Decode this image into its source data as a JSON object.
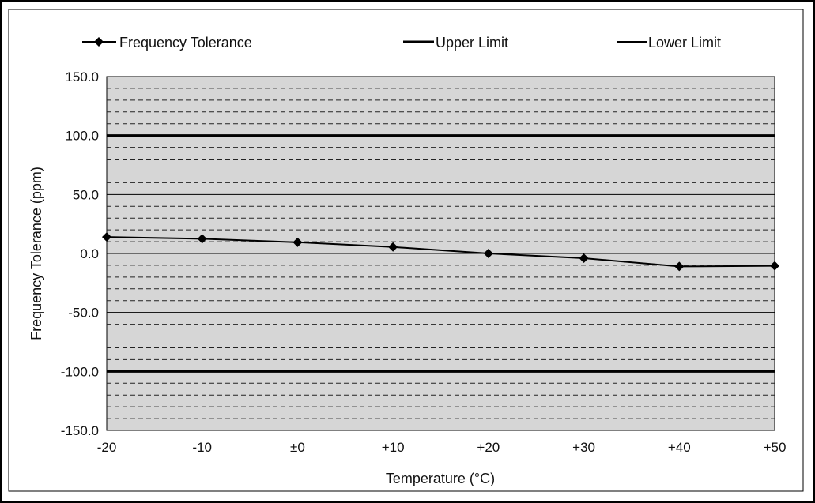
{
  "chart_data": {
    "type": "line",
    "title": "",
    "xlabel": "Temperature (°C)",
    "ylabel": "Frequency Tolerance (ppm)",
    "categories": [
      "-20",
      "-10",
      "±0",
      "+10",
      "+20",
      "+30",
      "+40",
      "+50"
    ],
    "ylim": [
      -150,
      150
    ],
    "yticks": [
      150,
      100,
      50,
      0,
      -50,
      -100,
      -150
    ],
    "ytick_labels": [
      "150.0",
      "100.0",
      "50.0",
      "0.0",
      "-50.0",
      "-100.0",
      "-150.0"
    ],
    "grid": {
      "major_step": 50,
      "minor_step": 10,
      "minor_style": "dashed"
    },
    "legend_position": "top",
    "series": [
      {
        "name": "Frequency Tolerance",
        "marker": "diamond",
        "color": "#000000",
        "values": [
          14,
          12.5,
          9.5,
          5.5,
          0,
          -4,
          -11,
          -10.5
        ]
      },
      {
        "name": "Upper Limit",
        "marker": "none",
        "color": "#000000",
        "values": [
          100,
          100,
          100,
          100,
          100,
          100,
          100,
          100
        ]
      },
      {
        "name": "Lower Limit",
        "marker": "none",
        "color": "#000000",
        "values": [
          -100,
          -100,
          -100,
          -100,
          -100,
          -100,
          -100,
          -100
        ]
      }
    ]
  },
  "colors": {
    "plot_background": "#d6d6d6",
    "frame": "#000000",
    "line": "#000000"
  }
}
